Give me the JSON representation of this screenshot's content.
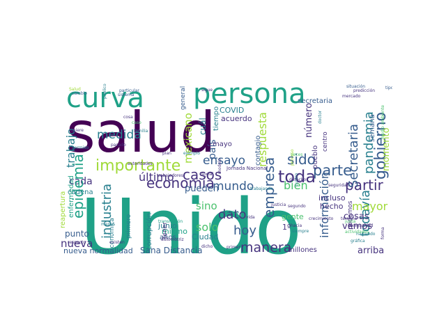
{
  "palette": {
    "dark_purple": "#440154",
    "indigo": "#46337e",
    "blue": "#365c8d",
    "teal": "#277f8e",
    "green_teal": "#1fa187",
    "green": "#4ac16d",
    "lime": "#a0da39",
    "yellow": "#fde725"
  },
  "words": [
    "salud",
    "Unido",
    "curva",
    "persona",
    "importante",
    "ensayo",
    "sido",
    "parte",
    "gobierno",
    "toda",
    "economía",
    "casos",
    "partir",
    "Secretaria",
    "pandemia",
    "momento",
    "medida",
    "trabajo",
    "cada",
    "mexicano",
    "país",
    "respuesta",
    "empresa",
    "epidemia",
    "último",
    "pueden",
    "mundo",
    "bien",
    "industria",
    "hoy",
    "manera",
    "información",
    "todavía",
    "mayor",
    "sino",
    "solo",
    "dato",
    "cosas",
    "vemos",
    "nueva",
    "nueva normalidad",
    "Sana Distancia",
    "arriba",
    "punto",
    "COVID",
    "acuerdo",
    "secretaria",
    "general",
    "contagio",
    "semana",
    "número",
    "mayo",
    "cuál",
    "tiempo",
    "junio",
    "Ciudad",
    "años",
    "mismo",
    "cadena",
    "reapertura",
    "enfermedad",
    "económica",
    "primero",
    "corrupción",
    "incluso",
    "hecho",
    "gente",
    "centro",
    "pueblo",
    "millones",
    "podemos",
    "1º",
    "tener",
    "autoridades",
    "trabajadores",
    "Jornada Nacional",
    "modelo",
    "ejemplo",
    "social",
    "automotriz",
    "transmisión",
    "gráfica",
    "vida",
    "sistema",
    "público",
    "sigue",
    "situación",
    "predicción",
    "tipo",
    "Salud",
    "cambio",
    "particular",
    "cosa",
    "caso",
    "quiere",
    "permiso",
    "pasado",
    "plan",
    "familia",
    "segundo",
    "cuatro",
    "desigualdad",
    "haciendo",
    "forma",
    "respecto",
    "existen",
    "dicho",
    "menos",
    "primer",
    "técnico",
    "justicia",
    "derecho",
    "crecimiento",
    "trabajando",
    "seguridad",
    "actividades",
    "hacia",
    "siempre",
    "medio ambiente",
    "término",
    "veces",
    "mercado",
    "doctor",
    "junta",
    "proceso"
  ]
}
